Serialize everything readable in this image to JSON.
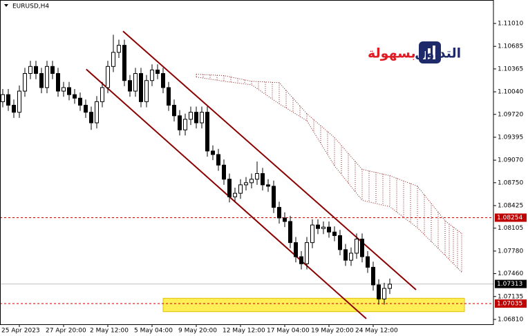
{
  "chart_data": {
    "type": "candlestick",
    "symbol": "EURUSD,H4",
    "ylim": [
      1.06741,
      1.11343
    ],
    "yticks": [
      {
        "value": 1.1101,
        "label": "1.11010"
      },
      1.10685,
      1.10365,
      {
        "value": 1.1004,
        "label": "1.10040"
      },
      {
        "value": 1.0972,
        "label": "1.09720"
      },
      1.09395,
      {
        "value": 1.0907,
        "label": "1.09070"
      },
      {
        "value": 1.0875,
        "label": "1.08750"
      },
      1.08425,
      1.08105,
      {
        "value": 1.0778,
        "label": "1.07780"
      },
      {
        "value": 1.0746,
        "label": "1.07460"
      },
      1.07135,
      {
        "value": 1.0681,
        "label": "1.06810"
      }
    ],
    "xticks": [
      {
        "value": 3,
        "label": "25 Apr 2023"
      },
      {
        "value": 11,
        "label": "27 Apr 20:00"
      },
      {
        "value": 19,
        "label": "2 May 12:00"
      },
      {
        "value": 27,
        "label": "5 May 04:00"
      },
      {
        "value": 35,
        "label": "9 May 20:00"
      },
      {
        "value": 43,
        "label": "12 May 12:00"
      },
      {
        "value": 51,
        "label": "17 May 04:00"
      },
      {
        "value": 59,
        "label": "19 May 20:00"
      },
      {
        "value": 67,
        "label": "24 May 12:00"
      }
    ],
    "open": [
      1.099,
      1.1,
      1.0985,
      1.0975,
      1.1005,
      1.103,
      1.104,
      1.103,
      1.101,
      1.104,
      1.103,
      1.1005,
      1.101,
      1.1,
      1.0995,
      1.0985,
      1.0975,
      1.096,
      1.099,
      1.101,
      1.104,
      1.106,
      1.107,
      1.102,
      1.1005,
      1.103,
      1.099,
      1.102,
      1.1035,
      1.103,
      1.101,
      1.0985,
      1.097,
      1.095,
      1.0965,
      1.0975,
      1.096,
      1.0975,
      1.092,
      1.0915,
      1.09,
      1.088,
      1.0855,
      1.086,
      1.0872,
      1.0875,
      1.088,
      1.0888,
      1.0872,
      1.087,
      1.084,
      1.0825,
      1.082,
      1.079,
      1.077,
      1.076,
      1.079,
      1.0815,
      1.081,
      1.0812,
      1.0805,
      1.08,
      1.078,
      1.0765,
      1.0775,
      1.0795,
      1.077,
      1.0755,
      1.073,
      1.071,
      1.0725
    ],
    "high": [
      1.1008,
      1.1008,
      1.0993,
      1.1013,
      1.1038,
      1.1048,
      1.1048,
      1.1038,
      1.1048,
      1.1048,
      1.1038,
      1.1018,
      1.1018,
      1.1008,
      1.1003,
      1.0993,
      1.0983,
      1.0998,
      1.1018,
      1.1048,
      1.1085,
      1.1078,
      1.1078,
      1.1028,
      1.1038,
      1.1038,
      1.1028,
      1.1043,
      1.1043,
      1.1038,
      1.1018,
      1.0993,
      1.0978,
      1.0973,
      1.0983,
      1.0983,
      1.0983,
      1.0983,
      1.0928,
      1.0923,
      1.0908,
      1.0888,
      1.0868,
      1.088,
      1.0883,
      1.0888,
      1.0905,
      1.0896,
      1.088,
      1.0878,
      1.0848,
      1.0833,
      1.0828,
      1.0798,
      1.0778,
      1.0798,
      1.0823,
      1.0823,
      1.082,
      1.082,
      1.0813,
      1.0808,
      1.0788,
      1.0783,
      1.0803,
      1.0803,
      1.0778,
      1.0763,
      1.0738,
      1.0733,
      1.0739
    ],
    "low": [
      1.0982,
      1.0977,
      1.0967,
      1.0967,
      1.0997,
      1.1022,
      1.1022,
      1.1002,
      1.1002,
      1.1022,
      1.0997,
      1.0997,
      1.0992,
      1.0987,
      1.0977,
      1.0967,
      1.095,
      1.0952,
      1.0982,
      1.1002,
      1.1032,
      1.1052,
      1.1012,
      1.0997,
      1.0997,
      1.0982,
      1.0982,
      1.1012,
      1.1022,
      1.1002,
      1.0977,
      1.0962,
      1.0942,
      1.0942,
      1.0957,
      1.0952,
      1.0952,
      1.0912,
      1.0907,
      1.0892,
      1.0872,
      1.0847,
      1.0847,
      1.0852,
      1.0864,
      1.0867,
      1.0872,
      1.0864,
      1.0862,
      1.0832,
      1.0817,
      1.0812,
      1.0782,
      1.0762,
      1.0752,
      1.0752,
      1.0782,
      1.0802,
      1.0802,
      1.0797,
      1.0792,
      1.0772,
      1.0757,
      1.0757,
      1.0767,
      1.0762,
      1.0747,
      1.0722,
      1.0702,
      1.0702,
      1.0717
    ],
    "close": [
      1.1,
      1.0985,
      1.0975,
      1.1005,
      1.103,
      1.104,
      1.103,
      1.101,
      1.104,
      1.103,
      1.1005,
      1.101,
      1.1,
      1.0995,
      1.0985,
      1.0975,
      1.096,
      1.099,
      1.101,
      1.104,
      1.106,
      1.107,
      1.102,
      1.1005,
      1.103,
      1.099,
      1.102,
      1.1035,
      1.103,
      1.101,
      1.0985,
      1.097,
      1.095,
      1.0965,
      1.0975,
      1.096,
      1.0975,
      1.092,
      1.0915,
      1.09,
      1.088,
      1.0855,
      1.086,
      1.0872,
      1.0875,
      1.088,
      1.0888,
      1.0872,
      1.087,
      1.084,
      1.0825,
      1.082,
      1.079,
      1.077,
      1.076,
      1.079,
      1.0815,
      1.081,
      1.0812,
      1.0805,
      1.08,
      1.078,
      1.0765,
      1.0775,
      1.0795,
      1.077,
      1.0755,
      1.073,
      1.071,
      1.0725,
      1.0731
    ],
    "cloud": {
      "x": [
        35,
        40,
        45,
        50,
        55,
        60,
        65,
        70,
        75,
        80,
        83
      ],
      "upper": [
        1.1029,
        1.1027,
        1.1019,
        1.1017,
        1.0973,
        1.0939,
        1.0894,
        1.0885,
        1.087,
        1.0821,
        1.0803
      ],
      "lower": [
        1.1025,
        1.1019,
        1.1014,
        1.0987,
        1.0963,
        1.0899,
        1.085,
        1.0841,
        1.0811,
        1.0772,
        1.0748
      ],
      "color": "#8b1a1a"
    },
    "channel": [
      {
        "x": [
          21.75,
          74.75
        ],
        "y": [
          1.109,
          1.0723
        ]
      },
      {
        "x": [
          15.1,
          65.75
        ],
        "y": [
          1.1036,
          1.0682
        ]
      }
    ],
    "channel_color": "#8b0000",
    "zone": {
      "x": [
        29,
        83.5
      ],
      "y": [
        1.0692,
        1.0711
      ],
      "color": "#ffee55"
    },
    "levels": [
      1.08254,
      1.07035
    ],
    "level_color": "#c00000",
    "last_price": 1.07313
  },
  "logo": [
    "التداول",
    "بسهولة"
  ]
}
